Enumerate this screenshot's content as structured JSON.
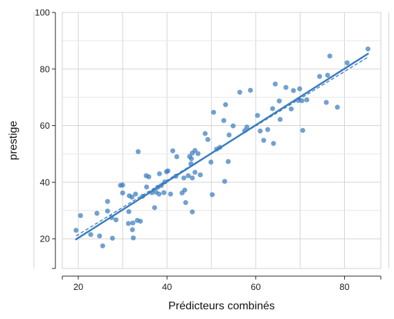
{
  "chart_data": {
    "type": "scatter",
    "xlabel": "Prédicteurs combinés",
    "ylabel": "prestige",
    "xlim": [
      16.4,
      88.2
    ],
    "ylim": [
      9.5,
      100
    ],
    "xticks": [
      20,
      40,
      60,
      80
    ],
    "yticks": [
      20,
      40,
      60,
      80,
      100
    ],
    "grid": true,
    "colors": {
      "points": "#3a7dbf",
      "line": "#3a7dbf"
    },
    "points": [
      [
        19.5,
        23
      ],
      [
        20.5,
        28.2
      ],
      [
        22.8,
        21.5
      ],
      [
        24.2,
        29
      ],
      [
        24.8,
        21
      ],
      [
        25.5,
        17.5
      ],
      [
        26.6,
        33.2
      ],
      [
        26.6,
        29.8
      ],
      [
        27.5,
        27.5
      ],
      [
        27.7,
        20.2
      ],
      [
        28.5,
        26.7
      ],
      [
        29.5,
        38.9
      ],
      [
        30,
        39
      ],
      [
        30,
        36.2
      ],
      [
        31.3,
        25.4
      ],
      [
        31.4,
        29.6
      ],
      [
        31.5,
        35.2
      ],
      [
        32.1,
        34.7
      ],
      [
        32.2,
        23.2
      ],
      [
        32.3,
        25.6
      ],
      [
        32.4,
        20.3
      ],
      [
        32.9,
        35.8
      ],
      [
        33.3,
        26.5
      ],
      [
        33.5,
        50.8
      ],
      [
        34,
        26.2
      ],
      [
        34.5,
        35
      ],
      [
        35.3,
        42.3
      ],
      [
        35.4,
        38.3
      ],
      [
        35.9,
        41.9
      ],
      [
        36.6,
        36.3
      ],
      [
        37.2,
        31
      ],
      [
        37.5,
        36.5
      ],
      [
        37.9,
        38.2
      ],
      [
        38.2,
        35.8
      ],
      [
        38.3,
        43
      ],
      [
        38.7,
        38.8
      ],
      [
        39.3,
        36.3
      ],
      [
        39.5,
        40.1
      ],
      [
        39.9,
        43.7
      ],
      [
        40.2,
        44
      ],
      [
        40.8,
        35.8
      ],
      [
        41.3,
        51.1
      ],
      [
        42,
        42.1
      ],
      [
        42.2,
        49
      ],
      [
        43.4,
        36.2
      ],
      [
        43.8,
        41.5
      ],
      [
        44,
        37.2
      ],
      [
        44.2,
        32.8
      ],
      [
        44.8,
        42.3
      ],
      [
        45.1,
        49.1
      ],
      [
        45.4,
        46.5
      ],
      [
        45.5,
        48.3
      ],
      [
        45.7,
        50.3
      ],
      [
        45.7,
        41.5
      ],
      [
        45.7,
        29.5
      ],
      [
        46.3,
        51.2
      ],
      [
        46.3,
        43.5
      ],
      [
        47,
        50.1
      ],
      [
        47.5,
        42.6
      ],
      [
        48.6,
        57.2
      ],
      [
        49.2,
        55.1
      ],
      [
        49.9,
        47.1
      ],
      [
        50.2,
        35.6
      ],
      [
        50.5,
        64.7
      ],
      [
        51.2,
        51.7
      ],
      [
        51.9,
        52.3
      ],
      [
        52.8,
        61.8
      ],
      [
        53,
        40.3
      ],
      [
        53.2,
        67.4
      ],
      [
        53.8,
        47.3
      ],
      [
        54,
        56.7
      ],
      [
        54.9,
        59.9
      ],
      [
        56.4,
        71.8
      ],
      [
        57.5,
        58.2
      ],
      [
        58,
        59.5
      ],
      [
        58.8,
        72.5
      ],
      [
        60.4,
        63.6
      ],
      [
        61,
        58.1
      ],
      [
        61.8,
        54.8
      ],
      [
        62.7,
        58.6
      ],
      [
        63.8,
        66
      ],
      [
        64,
        53.7
      ],
      [
        64.4,
        74.7
      ],
      [
        65.3,
        68.7
      ],
      [
        65.5,
        62.2
      ],
      [
        66.8,
        73.5
      ],
      [
        68,
        65.9
      ],
      [
        68.5,
        72.4
      ],
      [
        69.6,
        68.9
      ],
      [
        69.9,
        73
      ],
      [
        70.4,
        68.8
      ],
      [
        70.6,
        58.3
      ],
      [
        71.5,
        69.1
      ],
      [
        74.4,
        77.4
      ],
      [
        75.9,
        68.2
      ],
      [
        76.2,
        77.8
      ],
      [
        76.7,
        84.6
      ],
      [
        78.4,
        66.5
      ],
      [
        80.6,
        82.2
      ],
      [
        85.3,
        87.1
      ]
    ],
    "fit_line": [
      [
        19.5,
        19.8
      ],
      [
        85.3,
        85.4
      ]
    ],
    "fit_line_dashed": [
      [
        19.5,
        21.0
      ],
      [
        85.3,
        84.2
      ]
    ]
  }
}
